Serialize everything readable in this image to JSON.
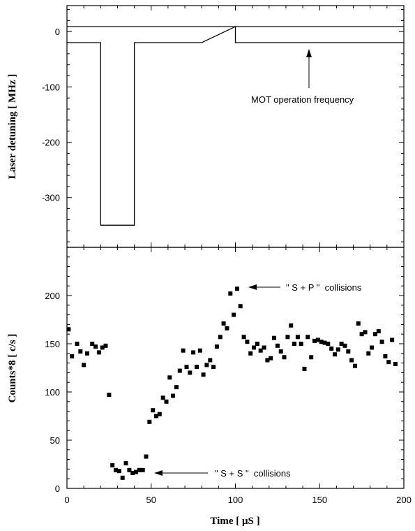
{
  "chart_data": [
    {
      "type": "line",
      "panel": "top",
      "xlabel": "",
      "ylabel": "Laser detuning [ MHz ]",
      "xlim": [
        0,
        200
      ],
      "ylim": [
        -390,
        47
      ],
      "yticks": [
        0,
        -100,
        -200,
        -300
      ],
      "series": [
        {
          "values": [
            [
              0,
              9
            ],
            [
              200,
              9
            ]
          ]
        },
        {
          "values": [
            [
              0,
              -20
            ],
            [
              20,
              -20
            ],
            [
              20,
              -350
            ],
            [
              40,
              -350
            ],
            [
              40,
              -20
            ],
            [
              80,
              -20
            ],
            [
              100,
              9
            ],
            [
              100,
              -20
            ],
            [
              200,
              -20
            ]
          ]
        }
      ],
      "annotations": [
        {
          "text": "MOT operation frequency",
          "arrow_target": [
            145,
            -20
          ]
        }
      ]
    },
    {
      "type": "scatter",
      "panel": "bottom",
      "xlabel": "Time [ μS ]",
      "ylabel": "Counts*8 [ c/s ]",
      "xlim": [
        0,
        200
      ],
      "ylim": [
        0,
        250
      ],
      "xticks": [
        0,
        50,
        100,
        150,
        200
      ],
      "yticks": [
        0,
        50,
        100,
        150,
        200
      ],
      "points": [
        [
          1,
          165
        ],
        [
          3,
          137
        ],
        [
          6,
          150
        ],
        [
          8,
          142
        ],
        [
          10,
          128
        ],
        [
          12,
          140
        ],
        [
          15,
          150
        ],
        [
          17,
          147
        ],
        [
          19,
          141
        ],
        [
          21,
          146
        ],
        [
          23,
          148
        ],
        [
          25,
          97
        ],
        [
          27,
          24
        ],
        [
          29,
          19
        ],
        [
          31,
          18
        ],
        [
          33,
          11
        ],
        [
          35,
          26
        ],
        [
          37,
          19
        ],
        [
          39,
          16
        ],
        [
          41,
          17
        ],
        [
          43,
          19
        ],
        [
          45,
          19
        ],
        [
          47,
          33
        ],
        [
          49,
          69
        ],
        [
          51,
          81
        ],
        [
          53,
          75
        ],
        [
          55,
          77
        ],
        [
          57,
          94
        ],
        [
          59,
          90
        ],
        [
          61,
          115
        ],
        [
          63,
          96
        ],
        [
          65,
          105
        ],
        [
          67,
          122
        ],
        [
          69,
          143
        ],
        [
          71,
          126
        ],
        [
          73,
          120
        ],
        [
          75,
          141
        ],
        [
          77,
          126
        ],
        [
          79,
          143
        ],
        [
          81,
          118
        ],
        [
          83,
          128
        ],
        [
          85,
          133
        ],
        [
          87,
          126
        ],
        [
          89,
          147
        ],
        [
          91,
          157
        ],
        [
          93,
          171
        ],
        [
          95,
          166
        ],
        [
          97,
          202
        ],
        [
          99,
          180
        ],
        [
          101,
          207
        ],
        [
          103,
          189
        ],
        [
          105,
          157
        ],
        [
          107,
          152
        ],
        [
          109,
          140
        ],
        [
          111,
          146
        ],
        [
          113,
          150
        ],
        [
          115,
          143
        ],
        [
          117,
          146
        ],
        [
          119,
          133
        ],
        [
          121,
          135
        ],
        [
          123,
          156
        ],
        [
          125,
          148
        ],
        [
          127,
          142
        ],
        [
          129,
          136
        ],
        [
          131,
          157
        ],
        [
          133,
          169
        ],
        [
          135,
          150
        ],
        [
          137,
          157
        ],
        [
          139,
          150
        ],
        [
          141,
          124
        ],
        [
          143,
          157
        ],
        [
          145,
          136
        ],
        [
          147,
          153
        ],
        [
          149,
          154
        ],
        [
          151,
          152
        ],
        [
          153,
          151
        ],
        [
          155,
          150
        ],
        [
          157,
          145
        ],
        [
          159,
          139
        ],
        [
          161,
          144
        ],
        [
          163,
          150
        ],
        [
          165,
          148
        ],
        [
          167,
          142
        ],
        [
          169,
          133
        ],
        [
          171,
          127
        ],
        [
          173,
          171
        ],
        [
          175,
          160
        ],
        [
          177,
          162
        ],
        [
          179,
          140
        ],
        [
          181,
          146
        ],
        [
          183,
          160
        ],
        [
          185,
          163
        ],
        [
          187,
          152
        ],
        [
          189,
          137
        ],
        [
          191,
          131
        ],
        [
          193,
          154
        ],
        [
          195,
          129
        ]
      ],
      "annotations": [
        {
          "text": "\" S + P \"  collisions",
          "arrow_target": [
            103,
            209
          ]
        },
        {
          "text": "\" S + S \"  collisions",
          "arrow_target": [
            47,
            19
          ]
        }
      ]
    }
  ]
}
